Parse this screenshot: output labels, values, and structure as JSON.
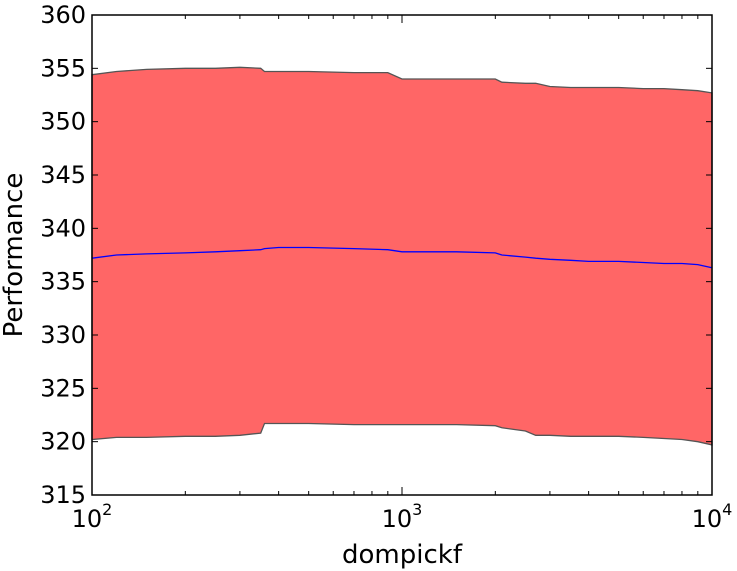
{
  "chart_data": {
    "type": "area",
    "xlabel": "dompickf",
    "ylabel": "Performance",
    "xscale": "log",
    "xlim": [
      100,
      10000
    ],
    "ylim": [
      315,
      360
    ],
    "x_ticks": [
      {
        "base": "10",
        "exp": "2"
      },
      {
        "base": "10",
        "exp": "3"
      },
      {
        "base": "10",
        "exp": "4"
      }
    ],
    "y_ticks": [
      "315",
      "320",
      "325",
      "330",
      "335",
      "340",
      "345",
      "350",
      "355",
      "360"
    ],
    "colors": {
      "band_fill": "#ff6666",
      "band_edge": "#555555",
      "line": "#0000ff"
    },
    "series": [
      {
        "role": "mean",
        "x": [
          100,
          120,
          150,
          200,
          250,
          300,
          350,
          360,
          400,
          500,
          700,
          900,
          1000,
          1200,
          1500,
          2000,
          2100,
          2500,
          2700,
          3000,
          3500,
          4000,
          5000,
          6000,
          7000,
          8000,
          9000,
          10000
        ],
        "y": [
          337.2,
          337.5,
          337.6,
          337.7,
          337.8,
          337.9,
          338.0,
          338.1,
          338.2,
          338.2,
          338.1,
          338.0,
          337.8,
          337.8,
          337.8,
          337.7,
          337.5,
          337.3,
          337.2,
          337.1,
          337.0,
          336.9,
          336.9,
          336.8,
          336.7,
          336.7,
          336.6,
          336.3
        ]
      },
      {
        "role": "upper",
        "x": [
          100,
          120,
          150,
          200,
          250,
          300,
          350,
          360,
          400,
          500,
          700,
          900,
          1000,
          1200,
          1500,
          2000,
          2100,
          2500,
          2700,
          3000,
          3500,
          4000,
          5000,
          6000,
          7000,
          8000,
          9000,
          10000
        ],
        "y": [
          354.4,
          354.7,
          354.9,
          355.0,
          355.0,
          355.1,
          355.0,
          354.7,
          354.7,
          354.7,
          354.6,
          354.6,
          354.0,
          354.0,
          354.0,
          354.0,
          353.7,
          353.6,
          353.6,
          353.3,
          353.2,
          353.2,
          353.2,
          353.1,
          353.1,
          353.0,
          352.9,
          352.7
        ]
      },
      {
        "role": "lower",
        "x": [
          100,
          120,
          150,
          200,
          250,
          300,
          350,
          360,
          400,
          500,
          700,
          900,
          1000,
          1200,
          1500,
          2000,
          2100,
          2500,
          2700,
          3000,
          3500,
          4000,
          5000,
          6000,
          7000,
          8000,
          9000,
          10000
        ],
        "y": [
          320.2,
          320.4,
          320.4,
          320.5,
          320.5,
          320.6,
          320.8,
          321.7,
          321.7,
          321.7,
          321.6,
          321.6,
          321.6,
          321.6,
          321.6,
          321.5,
          321.3,
          321.0,
          320.6,
          320.6,
          320.5,
          320.5,
          320.5,
          320.4,
          320.3,
          320.2,
          320.0,
          319.7
        ]
      }
    ]
  }
}
